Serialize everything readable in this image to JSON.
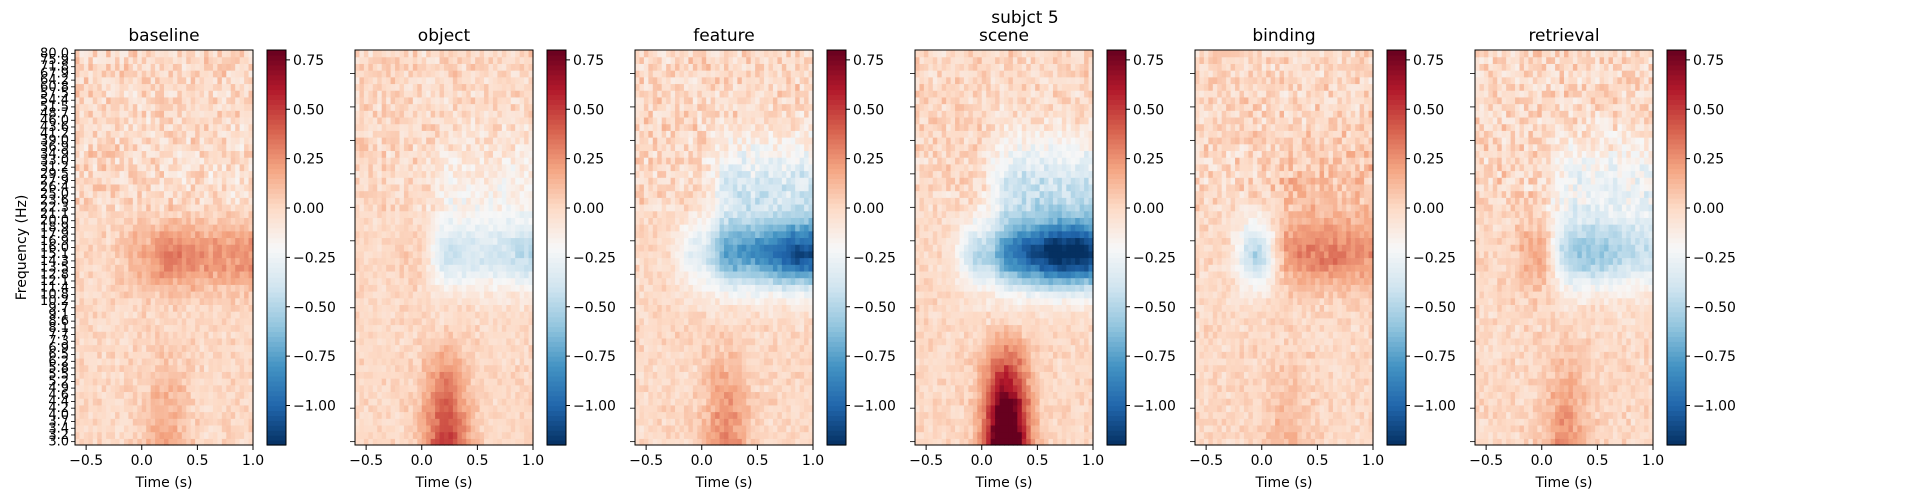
{
  "figure": {
    "title": "subjct 5"
  },
  "colormap": {
    "name": "RdBu_r",
    "stops": [
      "#053061",
      "#2166ac",
      "#4393c3",
      "#92c5de",
      "#d1e5f0",
      "#f7f7f7",
      "#fddbc7",
      "#f4a582",
      "#d6604d",
      "#b2182b",
      "#67001f"
    ]
  },
  "chart_data": [
    {
      "type": "heatmap",
      "title": "baseline",
      "xlabel": "Time (s)",
      "ylabel": "Frequency (Hz)",
      "xlim": [
        -0.6,
        1.0
      ],
      "ylim": [
        3.0,
        80.0
      ],
      "x_ticks": [
        "-0.5",
        "0.0",
        "0.5",
        "1.0"
      ],
      "y_ticks": [
        "3.0",
        "3.2",
        "3.4",
        "3.7",
        "4.0",
        "4.2",
        "4.4",
        "4.6",
        "4.9",
        "5.2",
        "5.5",
        "5.8",
        "6.2",
        "6.5",
        "6.9",
        "7.3",
        "7.7",
        "8.1",
        "8.6",
        "9.1",
        "9.7",
        "10.2",
        "10.8",
        "11.4",
        "12.1",
        "12.8",
        "13.5",
        "14.3",
        "15.1",
        "16.0",
        "16.9",
        "17.9",
        "18.9",
        "20.0",
        "21.1",
        "22.3",
        "23.6",
        "25.0",
        "26.4",
        "27.9",
        "29.5",
        "31.2",
        "33.0",
        "34.9",
        "36.9",
        "39.0",
        "41.2",
        "43.6",
        "46.0",
        "48.7",
        "51.5",
        "54.4",
        "57.5",
        "60.8",
        "64.2",
        "67.9",
        "71.8",
        "75.9",
        "80.0"
      ],
      "color_range": [
        -1.2,
        0.8
      ],
      "colorbar_ticks": [
        "0.75",
        "0.50",
        "0.25",
        "0.00",
        "−0.25",
        "−0.50",
        "−0.75",
        "−1.00"
      ],
      "features": {
        "alpha_power": 0.35,
        "alpha_early": 0.15,
        "low_freq_power": 0.22,
        "beta_power": -0.05,
        "high_freq_noise": 0.12
      }
    },
    {
      "type": "heatmap",
      "title": "object",
      "xlabel": "Time (s)",
      "xlim": [
        -0.6,
        1.0
      ],
      "color_range": [
        -1.2,
        0.8
      ],
      "colorbar_ticks": [
        "0.75",
        "0.50",
        "0.25",
        "0.00",
        "−0.25",
        "−0.50",
        "−0.75",
        "−1.00"
      ],
      "features": {
        "alpha_power": -0.5,
        "alpha_early": 0.05,
        "low_freq_power": 0.6,
        "beta_power": -0.15,
        "high_freq_noise": 0.1
      }
    },
    {
      "type": "heatmap",
      "title": "feature",
      "xlabel": "Time (s)",
      "xlim": [
        -0.6,
        1.0
      ],
      "color_range": [
        -1.2,
        0.8
      ],
      "colorbar_ticks": [
        "0.75",
        "0.50",
        "0.25",
        "0.00",
        "−0.25",
        "−0.50",
        "−0.75",
        "−1.00"
      ],
      "features": {
        "alpha_power": -1.05,
        "alpha_early": -0.3,
        "low_freq_power": 0.35,
        "beta_power": -0.35,
        "high_freq_noise": 0.12
      }
    },
    {
      "type": "heatmap",
      "title": "scene",
      "xlabel": "Time (s)",
      "xlim": [
        -0.6,
        1.0
      ],
      "color_range": [
        -1.2,
        0.8
      ],
      "colorbar_ticks": [
        "0.75",
        "0.50",
        "0.25",
        "0.00",
        "−0.25",
        "−0.50",
        "−0.75",
        "−1.00"
      ],
      "features": {
        "alpha_power": -1.2,
        "alpha_early": -0.45,
        "low_freq_power": 1.25,
        "beta_power": -0.4,
        "high_freq_noise": 0.1
      }
    },
    {
      "type": "heatmap",
      "title": "binding",
      "xlabel": "Time (s)",
      "xlim": [
        -0.6,
        1.0
      ],
      "color_range": [
        -1.2,
        0.8
      ],
      "colorbar_ticks": [
        "0.75",
        "0.50",
        "0.25",
        "0.00",
        "−0.25",
        "−0.50",
        "−0.75",
        "−1.00"
      ],
      "features": {
        "alpha_power": 0.3,
        "alpha_early": -0.5,
        "low_freq_power": 0.15,
        "beta_power": 0.1,
        "high_freq_noise": 0.12
      }
    },
    {
      "type": "heatmap",
      "title": "retrieval",
      "xlabel": "Time (s)",
      "xlim": [
        -0.6,
        1.0
      ],
      "color_range": [
        -1.2,
        0.8
      ],
      "colorbar_ticks": [
        "0.75",
        "0.50",
        "0.25",
        "0.00",
        "−0.25",
        "−0.50",
        "−0.75",
        "−1.00"
      ],
      "features": {
        "alpha_power": -0.55,
        "alpha_early": 0.2,
        "low_freq_power": 0.3,
        "beta_power": -0.25,
        "high_freq_noise": 0.13
      }
    }
  ]
}
